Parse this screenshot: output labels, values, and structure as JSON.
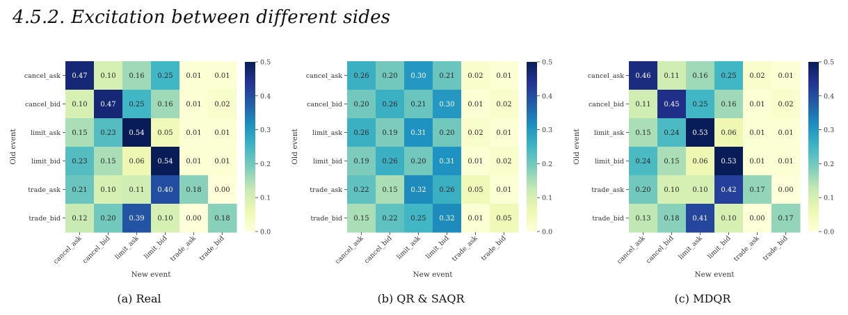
{
  "section": {
    "title": "4.5.2. Excitation between different sides"
  },
  "colors": {
    "cmap": "YlGnBu",
    "low": "#ffffd9",
    "high": "#081d58"
  },
  "chart_data": [
    {
      "type": "heatmap",
      "caption": "(a) Real",
      "xlabel": "New event",
      "ylabel": "Old event",
      "x_categories": [
        "cancel_ask",
        "cancel_bid",
        "limit_ask",
        "limit_bid",
        "trade_ask",
        "trade_bid"
      ],
      "y_categories": [
        "cancel_ask",
        "cancel_bid",
        "limit_ask",
        "limit_bid",
        "trade_ask",
        "trade_bid"
      ],
      "values": [
        [
          0.47,
          0.1,
          0.16,
          0.25,
          0.01,
          0.01
        ],
        [
          0.1,
          0.47,
          0.25,
          0.16,
          0.01,
          0.02
        ],
        [
          0.15,
          0.23,
          0.54,
          0.05,
          0.01,
          0.01
        ],
        [
          0.23,
          0.15,
          0.06,
          0.54,
          0.01,
          0.01
        ],
        [
          0.21,
          0.1,
          0.11,
          0.4,
          0.18,
          0.0
        ],
        [
          0.12,
          0.2,
          0.39,
          0.1,
          0.0,
          0.18
        ]
      ],
      "colorbar": {
        "vmin": 0.0,
        "vmax": 0.5,
        "ticks": [
          "0.0",
          "0.1",
          "0.2",
          "0.3",
          "0.4",
          "0.5"
        ]
      }
    },
    {
      "type": "heatmap",
      "caption": "(b) QR & SAQR",
      "xlabel": "New event",
      "ylabel": "Old event",
      "x_categories": [
        "cancel_ask",
        "cancel_bid",
        "limit_ask",
        "limit_bid",
        "trade_ask",
        "trade_bid"
      ],
      "y_categories": [
        "cancel_ask",
        "cancel_bid",
        "limit_ask",
        "limit_bid",
        "trade_ask",
        "trade_bid"
      ],
      "values": [
        [
          0.26,
          0.2,
          0.3,
          0.21,
          0.02,
          0.01
        ],
        [
          0.2,
          0.26,
          0.21,
          0.3,
          0.01,
          0.02
        ],
        [
          0.26,
          0.19,
          0.31,
          0.2,
          0.02,
          0.01
        ],
        [
          0.19,
          0.26,
          0.2,
          0.31,
          0.01,
          0.02
        ],
        [
          0.22,
          0.15,
          0.32,
          0.26,
          0.05,
          0.01
        ],
        [
          0.15,
          0.22,
          0.25,
          0.32,
          0.01,
          0.05
        ]
      ],
      "colorbar": {
        "vmin": 0.0,
        "vmax": 0.5,
        "ticks": [
          "0.0",
          "0.1",
          "0.2",
          "0.3",
          "0.4",
          "0.5"
        ]
      }
    },
    {
      "type": "heatmap",
      "caption": "(c) MDQR",
      "xlabel": "New event",
      "ylabel": "Old event",
      "x_categories": [
        "cancel_ask",
        "cancel_bid",
        "limit_ask",
        "limit_bid",
        "trade_ask",
        "trade_bid"
      ],
      "y_categories": [
        "cancel_ask",
        "cancel_bid",
        "limit_ask",
        "limit_bid",
        "trade_ask",
        "trade_bid"
      ],
      "values": [
        [
          0.46,
          0.11,
          0.16,
          0.25,
          0.02,
          0.01
        ],
        [
          0.11,
          0.45,
          0.25,
          0.16,
          0.01,
          0.02
        ],
        [
          0.15,
          0.24,
          0.53,
          0.06,
          0.01,
          0.01
        ],
        [
          0.24,
          0.15,
          0.06,
          0.53,
          0.01,
          0.01
        ],
        [
          0.2,
          0.1,
          0.1,
          0.42,
          0.17,
          0.0
        ],
        [
          0.13,
          0.18,
          0.41,
          0.1,
          0.0,
          0.17
        ]
      ],
      "colorbar": {
        "vmin": 0.0,
        "vmax": 0.5,
        "ticks": [
          "0.0",
          "0.1",
          "0.2",
          "0.3",
          "0.4",
          "0.5"
        ]
      }
    }
  ]
}
